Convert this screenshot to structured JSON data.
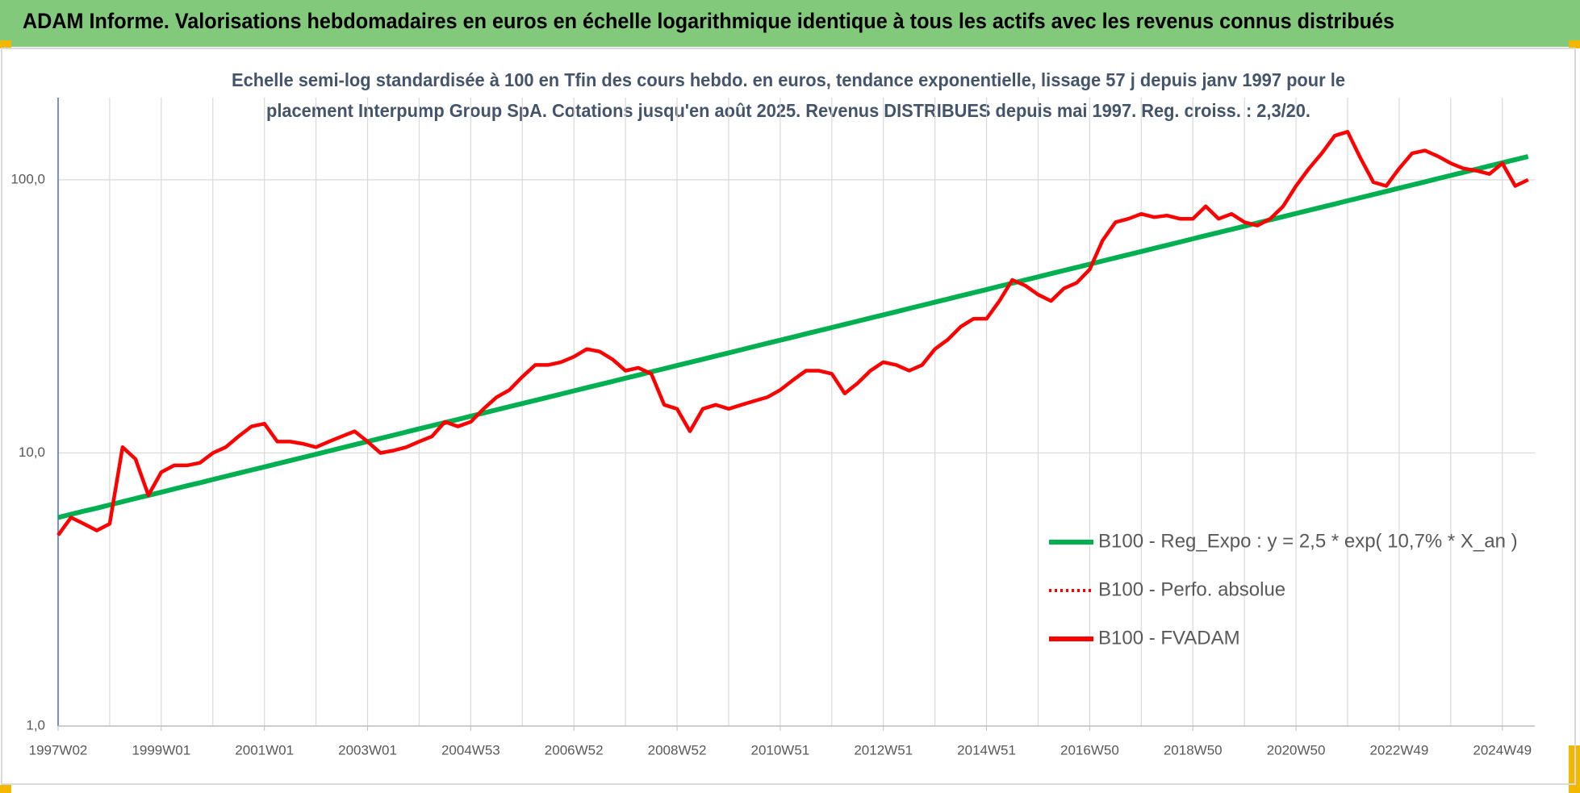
{
  "chart_data": {
    "type": "line",
    "title": "ADAM Informe. Valorisations hebdomadaires en euros en échelle logarithmique identique à tous les actifs avec les revenus connus distribués",
    "subtitle": [
      "Echelle semi-log standardisée à 100 en Tfin des cours hebdo. en euros, tendance exponentielle, lissage 57 j depuis janv 1997 pour le",
      "placement Interpump Group SpA.  Cotations jusqu'en août 2025.  Revenus DISTRIBUES depuis mai 1997. Reg. croiss. : 2,3/20."
    ],
    "categories": [
      "1997W02",
      null,
      null,
      null,
      null,
      null,
      null,
      null,
      "1999W01",
      null,
      null,
      null,
      null,
      null,
      null,
      null,
      "2001W01",
      null,
      null,
      null,
      null,
      null,
      null,
      null,
      "2003W01",
      null,
      null,
      null,
      null,
      null,
      null,
      null,
      "2004W53",
      null,
      null,
      null,
      null,
      null,
      null,
      null,
      "2006W52",
      null,
      null,
      null,
      null,
      null,
      null,
      null,
      "2008W52",
      null,
      null,
      null,
      null,
      null,
      null,
      null,
      "2010W51",
      null,
      null,
      null,
      null,
      null,
      null,
      null,
      "2012W51",
      null,
      null,
      null,
      null,
      null,
      null,
      null,
      "2014W51",
      null,
      null,
      null,
      null,
      null,
      null,
      null,
      "2016W50",
      null,
      null,
      null,
      null,
      null,
      null,
      null,
      "2018W50",
      null,
      null,
      null,
      null,
      null,
      null,
      null,
      "2020W50",
      null,
      null,
      null,
      null,
      null,
      null,
      null,
      "2022W49",
      null,
      null,
      null,
      null,
      null,
      null,
      null,
      "2024W49",
      null,
      null
    ],
    "series": [
      {
        "name": "B100 - Reg_Expo : y = 2,5 * exp( 10,7% *  X_an )",
        "color": "#00b050",
        "values": [
          5.8,
          5.96,
          6.12,
          6.28,
          6.45,
          6.63,
          6.81,
          6.99,
          7.18,
          7.38,
          7.58,
          7.78,
          7.99,
          8.21,
          8.43,
          8.66,
          8.89,
          9.13,
          9.38,
          9.63,
          9.89,
          10.16,
          10.44,
          10.72,
          11.01,
          11.31,
          11.61,
          11.93,
          12.25,
          12.58,
          12.92,
          13.27,
          13.63,
          14.0,
          14.38,
          14.77,
          15.17,
          15.58,
          16.0,
          16.43,
          16.88,
          17.33,
          17.8,
          18.28,
          18.78,
          19.29,
          19.81,
          20.35,
          20.9,
          21.46,
          22.04,
          22.64,
          23.25,
          23.88,
          24.53,
          25.19,
          25.87,
          26.57,
          27.29,
          28.03,
          28.79,
          29.57,
          30.37,
          31.19,
          32.03,
          32.9,
          33.79,
          34.7,
          35.64,
          36.61,
          37.6,
          38.62,
          39.66,
          40.74,
          41.84,
          42.97,
          44.13,
          45.33,
          46.55,
          47.81,
          49.11,
          50.44,
          51.8,
          53.2,
          54.64,
          56.12,
          57.64,
          59.2,
          60.81,
          62.45,
          64.14,
          65.88,
          67.66,
          69.49,
          71.37,
          73.31,
          75.29,
          77.33,
          79.42,
          81.57,
          83.78,
          86.05,
          88.38,
          90.77,
          93.23,
          95.75,
          98.34,
          101.0,
          103.74,
          106.55,
          109.43,
          112.39,
          115.43,
          118.56,
          121.77
        ]
      },
      {
        "name": "B100 - Perfo. absolue",
        "color": "#ff0000",
        "dashed": true,
        "values": [
          5.0,
          5.8,
          5.5,
          5.2,
          5.5,
          10.5,
          9.5,
          7.0,
          8.5,
          9.0,
          9.0,
          9.2,
          10.0,
          10.5,
          11.5,
          12.5,
          12.8,
          11.0,
          11.0,
          10.8,
          10.5,
          11.0,
          11.5,
          12.0,
          11.0,
          10.0,
          10.2,
          10.5,
          11.0,
          11.5,
          13.0,
          12.5,
          13.0,
          14.5,
          16.0,
          17.0,
          19.0,
          21.0,
          21.0,
          21.5,
          22.5,
          24.0,
          23.5,
          22.0,
          20.0,
          20.5,
          19.5,
          15.0,
          14.5,
          12.0,
          14.5,
          15.0,
          14.5,
          15.0,
          15.5,
          16.0,
          17.0,
          18.5,
          20.0,
          20.0,
          19.5,
          16.5,
          18.0,
          20.0,
          21.5,
          21.0,
          20.0,
          21.0,
          24.0,
          26.0,
          29.0,
          31.0,
          31.0,
          36.0,
          43.0,
          41.0,
          38.0,
          36.0,
          40.0,
          42.0,
          47.0,
          60.0,
          70.0,
          72.0,
          75.0,
          73.0,
          74.0,
          72.0,
          72.0,
          80.0,
          72.0,
          75.0,
          70.0,
          68.0,
          72.0,
          80.0,
          95.0,
          110.0,
          125.0,
          145.0,
          150.0,
          120.0,
          98.0,
          95.0,
          110.0,
          125.0,
          128.0,
          122.0,
          115.0,
          110.0,
          108.0,
          105.0,
          115.0,
          95.0,
          100.0
        ]
      },
      {
        "name": "B100 - FVADAM",
        "color": "#ff0000",
        "values": [
          5.0,
          5.8,
          5.5,
          5.2,
          5.5,
          10.5,
          9.5,
          7.0,
          8.5,
          9.0,
          9.0,
          9.2,
          10.0,
          10.5,
          11.5,
          12.5,
          12.8,
          11.0,
          11.0,
          10.8,
          10.5,
          11.0,
          11.5,
          12.0,
          11.0,
          10.0,
          10.2,
          10.5,
          11.0,
          11.5,
          13.0,
          12.5,
          13.0,
          14.5,
          16.0,
          17.0,
          19.0,
          21.0,
          21.0,
          21.5,
          22.5,
          24.0,
          23.5,
          22.0,
          20.0,
          20.5,
          19.5,
          15.0,
          14.5,
          12.0,
          14.5,
          15.0,
          14.5,
          15.0,
          15.5,
          16.0,
          17.0,
          18.5,
          20.0,
          20.0,
          19.5,
          16.5,
          18.0,
          20.0,
          21.5,
          21.0,
          20.0,
          21.0,
          24.0,
          26.0,
          29.0,
          31.0,
          31.0,
          36.0,
          43.0,
          41.0,
          38.0,
          36.0,
          40.0,
          42.0,
          47.0,
          60.0,
          70.0,
          72.0,
          75.0,
          73.0,
          74.0,
          72.0,
          72.0,
          80.0,
          72.0,
          75.0,
          70.0,
          68.0,
          72.0,
          80.0,
          95.0,
          110.0,
          125.0,
          145.0,
          150.0,
          120.0,
          98.0,
          95.0,
          110.0,
          125.0,
          128.0,
          122.0,
          115.0,
          110.0,
          108.0,
          105.0,
          115.0,
          95.0,
          100.0
        ]
      }
    ],
    "log_scale": true,
    "ylim": [
      1,
      200
    ],
    "yticks": [
      {
        "value": 1,
        "label": "1,0"
      },
      {
        "value": 10,
        "label": "10,0"
      },
      {
        "value": 100,
        "label": "100,0"
      }
    ],
    "grid": true,
    "legend": "right"
  }
}
